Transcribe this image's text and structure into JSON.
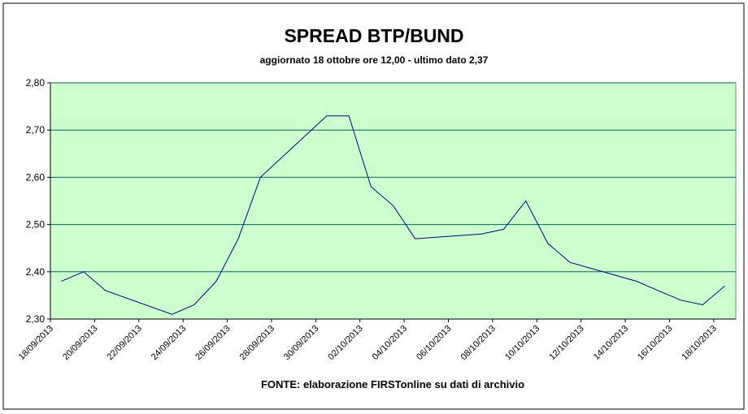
{
  "chart_data": {
    "type": "line",
    "title": "SPREAD BTP/BUND",
    "subtitle": "aggiornato 18 ottobre ore 12,00 - ultimo dato 2,37",
    "source": "FONTE: elaborazione FIRSTonline su dati di archivio",
    "x": [
      "18/09/2013",
      "19/09/2013",
      "20/09/2013",
      "23/09/2013",
      "24/09/2013",
      "25/09/2013",
      "26/09/2013",
      "27/09/2013",
      "30/09/2013",
      "01/10/2013",
      "02/10/2013",
      "03/10/2013",
      "04/10/2013",
      "07/10/2013",
      "08/10/2013",
      "09/10/2013",
      "10/10/2013",
      "11/10/2013",
      "14/10/2013",
      "15/10/2013",
      "16/10/2013",
      "17/10/2013",
      "18/10/2013"
    ],
    "series": [
      {
        "name": "Spread",
        "color": "#000080",
        "values": [
          2.38,
          2.4,
          2.36,
          2.31,
          2.33,
          2.38,
          2.47,
          2.6,
          2.73,
          2.73,
          2.58,
          2.54,
          2.47,
          2.48,
          2.49,
          2.55,
          2.46,
          2.42,
          2.38,
          2.36,
          2.34,
          2.33,
          2.37
        ]
      }
    ],
    "xticks": [
      "18/09/2013",
      "20/09/2013",
      "22/09/2013",
      "24/09/2013",
      "26/09/2013",
      "28/09/2013",
      "30/09/2013",
      "02/10/2013",
      "04/10/2013",
      "06/10/2013",
      "08/10/2013",
      "10/10/2013",
      "12/10/2013",
      "14/10/2013",
      "16/10/2013",
      "18/10/2013"
    ],
    "ylim": [
      2.3,
      2.8
    ],
    "yticks": [
      {
        "value": 2.3,
        "label": "2,30"
      },
      {
        "value": 2.4,
        "label": "2,40"
      },
      {
        "value": 2.5,
        "label": "2,50"
      },
      {
        "value": 2.6,
        "label": "2,60"
      },
      {
        "value": 2.7,
        "label": "2,70"
      },
      {
        "value": 2.8,
        "label": "2,80"
      }
    ],
    "grid": true
  }
}
